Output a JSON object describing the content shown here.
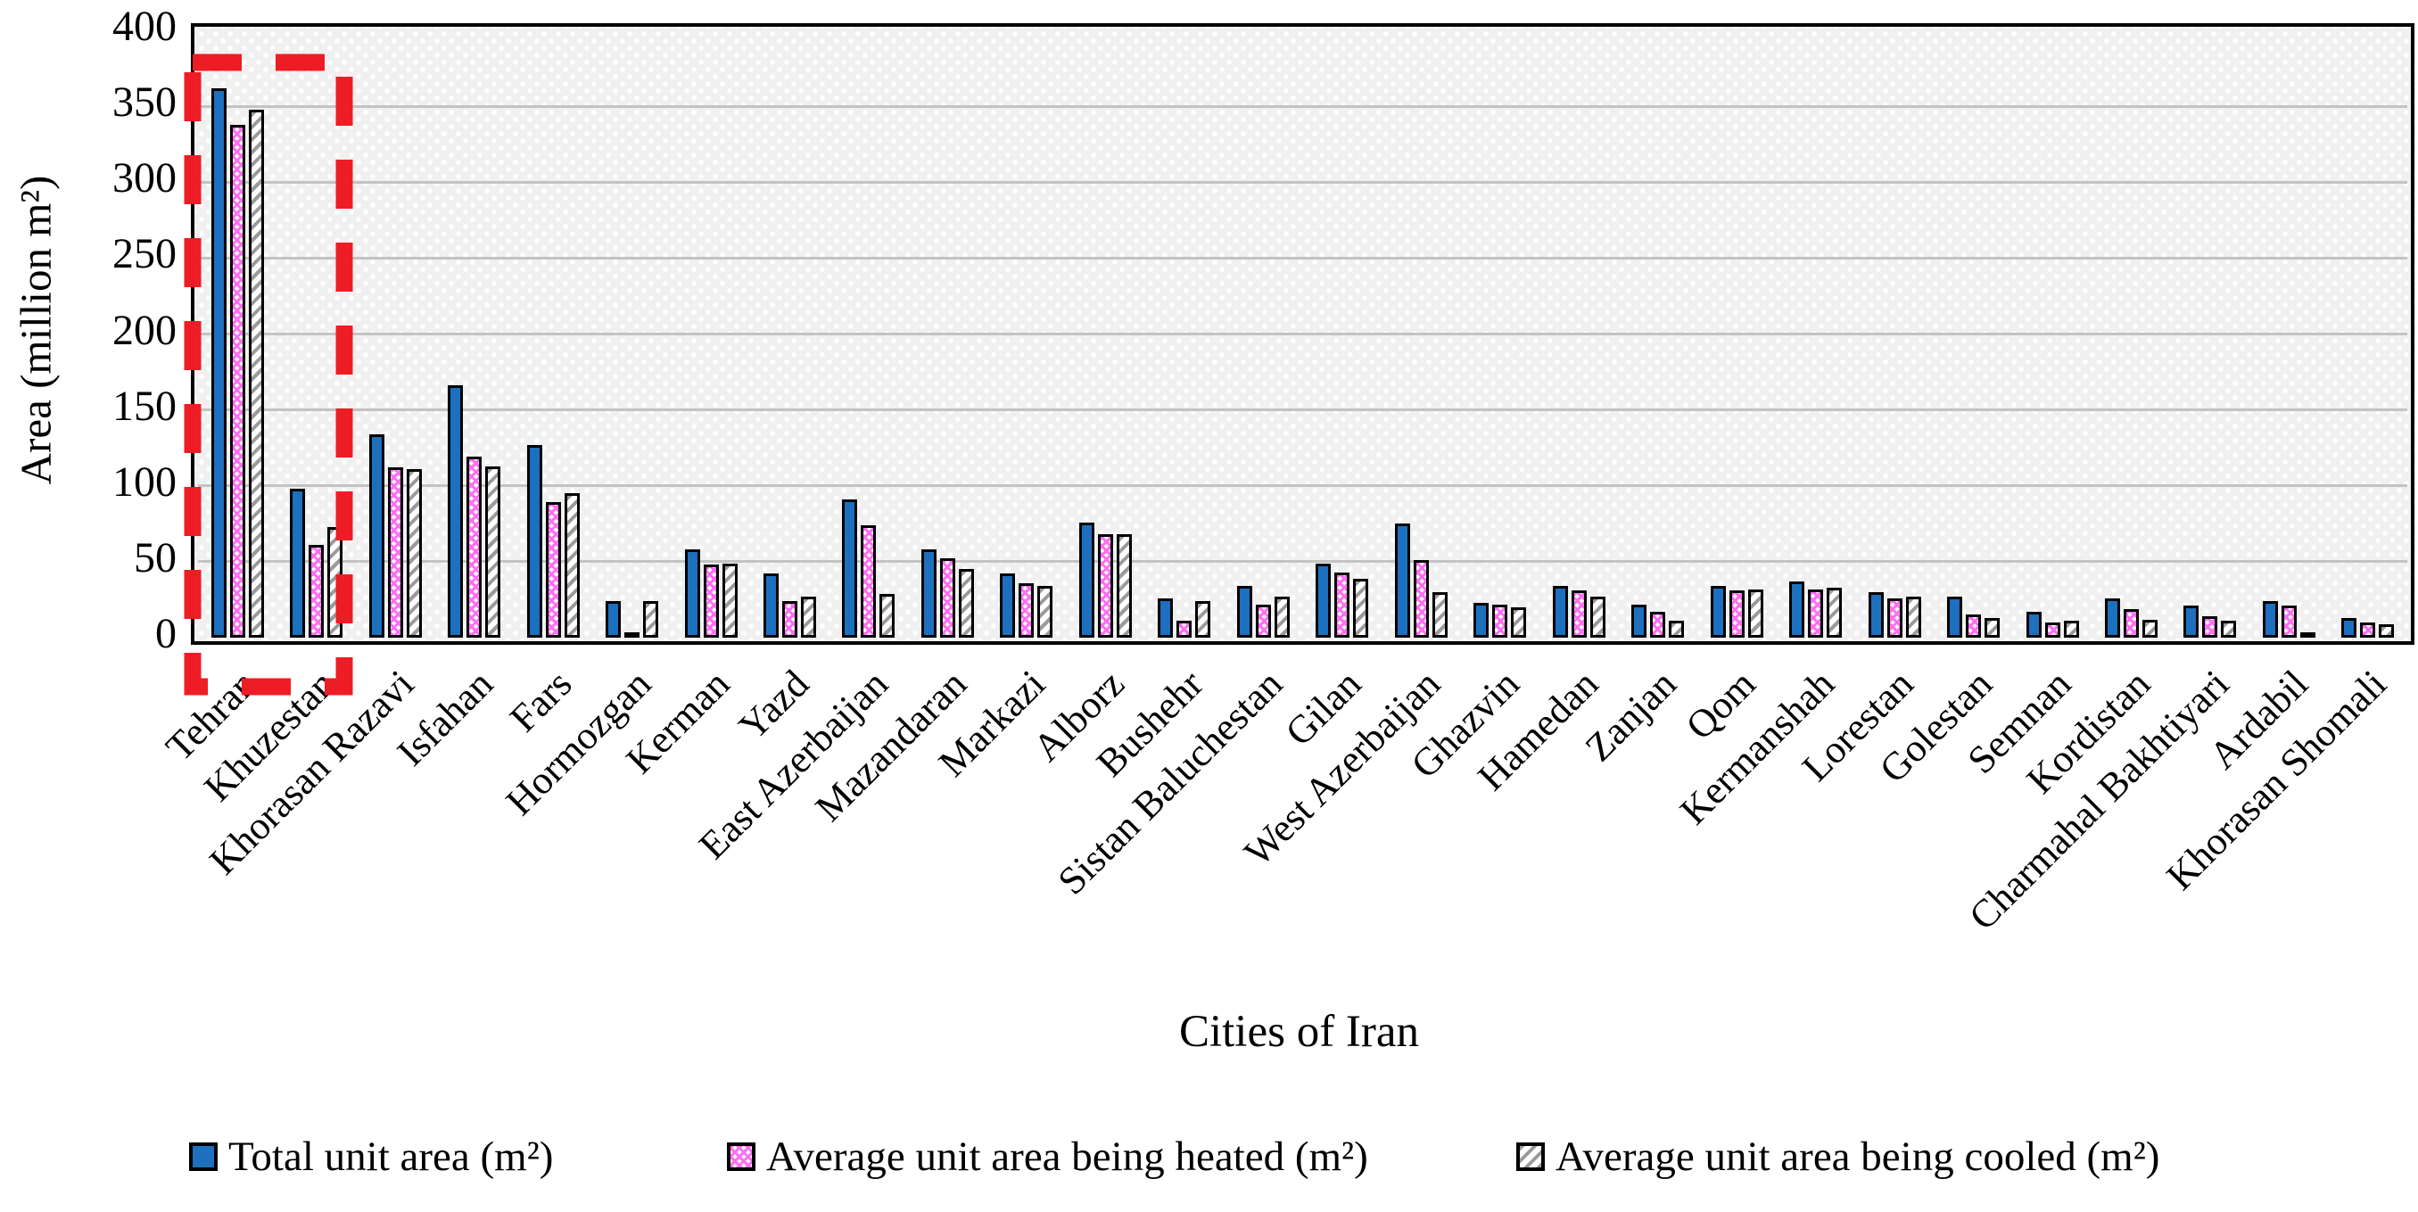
{
  "chart_data": {
    "type": "bar",
    "title": "",
    "xlabel": "Cities of Iran",
    "ylabel": "Area (million m²)",
    "ylim": [
      0,
      400
    ],
    "yticks": [
      0,
      50,
      100,
      150,
      200,
      250,
      300,
      350,
      400
    ],
    "grid": "horizontal",
    "legend_position": "bottom",
    "categories": [
      "Tehran",
      "Khuzestan",
      "Khorasan Razavi",
      "Isfahan",
      "Fars",
      "Hormozgan",
      "Kerman",
      "Yazd",
      "East Azerbaijan",
      "Mazandaran",
      "Markazi",
      "Alborz",
      "Bushehr",
      "Sistan Baluchestan",
      "Gilan",
      "West Azerbaijan",
      "Ghazvin",
      "Hamedan",
      "Zanjan",
      "Qom",
      "Kermanshah",
      "Lorestan",
      "Golestan",
      "Semnan",
      "Kordistan",
      "Charmahal Bakhtiyari",
      "Ardabil",
      "Khorasan Shomali"
    ],
    "series": [
      {
        "name": "Total unit area (m²)",
        "color": "#1d70be",
        "pattern": "solid",
        "values": [
          362,
          98,
          134,
          166,
          127,
          24,
          58,
          42,
          91,
          58,
          42,
          76,
          26,
          34,
          49,
          75,
          23,
          34,
          22,
          34,
          37,
          30,
          27,
          17,
          26,
          21,
          24,
          13
        ]
      },
      {
        "name": "Average unit area being heated (m²)",
        "color": "#ff6ef0",
        "pattern": "pink-crosshatch",
        "values": [
          338,
          61,
          112,
          119,
          89,
          2,
          48,
          24,
          74,
          52,
          36,
          68,
          11,
          22,
          43,
          51,
          22,
          31,
          17,
          31,
          32,
          26,
          15,
          10,
          19,
          14,
          21,
          10
        ]
      },
      {
        "name": "Average unit area being cooled (m²)",
        "color": "#9b9b9b",
        "pattern": "gray-diagonal",
        "values": [
          348,
          73,
          111,
          113,
          95,
          24,
          49,
          27,
          29,
          45,
          34,
          68,
          24,
          27,
          39,
          30,
          20,
          27,
          11,
          32,
          33,
          27,
          13,
          11,
          12,
          11,
          2,
          9
        ]
      }
    ],
    "highlight": {
      "shape": "dashed-rectangle",
      "color": "#ee1c25",
      "around_categories": [
        "Tehran",
        "Khuzestan"
      ]
    }
  }
}
